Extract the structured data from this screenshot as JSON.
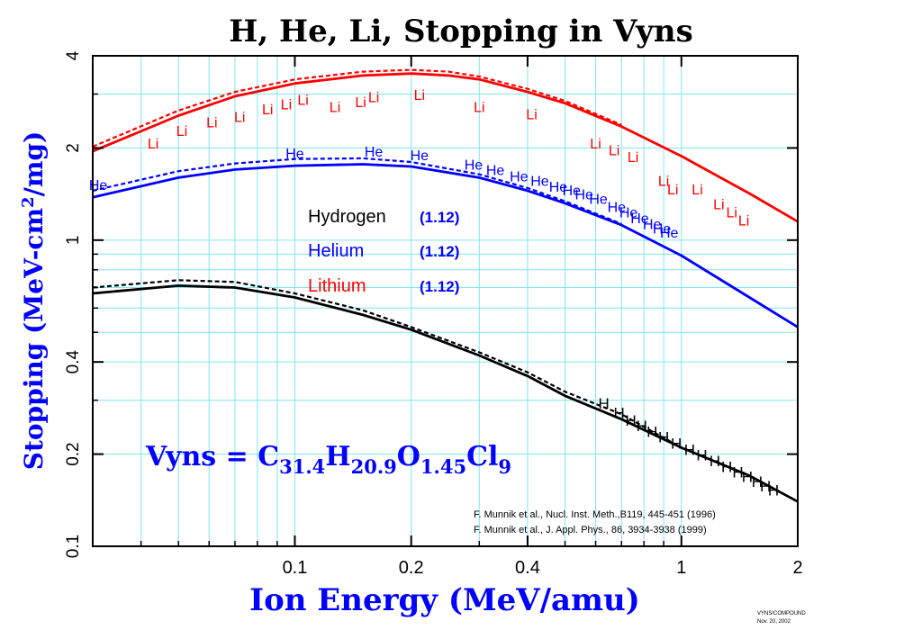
{
  "chart_data": {
    "type": "line",
    "title": "H, He, Li, Stopping in Vyns",
    "xlabel": "Ion Energy (MeV/amu)",
    "ylabel_parts": [
      "Stopping (MeV-cm",
      "2",
      "/mg)"
    ],
    "xscale": "log",
    "yscale": "log",
    "xlim": [
      0.03,
      2
    ],
    "ylim": [
      0.1,
      4
    ],
    "x_ticks": [
      {
        "value": 0.1,
        "label": "0.1"
      },
      {
        "value": 0.2,
        "label": "0.2"
      },
      {
        "value": 0.4,
        "label": "0.4"
      },
      {
        "value": 1,
        "label": "1"
      },
      {
        "value": 2,
        "label": "2"
      }
    ],
    "y_ticks": [
      {
        "value": 0.1,
        "label": "0.1"
      },
      {
        "value": 0.2,
        "label": "0.2"
      },
      {
        "value": 0.4,
        "label": "0.4"
      },
      {
        "value": 1,
        "label": "1"
      },
      {
        "value": 2,
        "label": "2"
      },
      {
        "value": 4,
        "label": "4"
      }
    ],
    "x_grid_values": [
      0.04,
      0.05,
      0.06,
      0.07,
      0.08,
      0.09,
      0.1,
      0.2,
      0.3,
      0.4,
      0.5,
      0.6,
      0.7,
      0.8,
      0.9,
      1
    ],
    "y_grid_values": [
      0.2,
      0.3,
      0.4,
      0.5,
      0.6,
      0.7,
      0.8,
      0.9,
      1,
      2,
      3
    ],
    "curves": [
      {
        "name": "Lithium (solid)",
        "color": "#ff0000",
        "dashed": false,
        "x": [
          0.03,
          0.05,
          0.07,
          0.1,
          0.15,
          0.2,
          0.25,
          0.3,
          0.4,
          0.5,
          0.7,
          1,
          1.5,
          2
        ],
        "y": [
          1.95,
          2.55,
          2.95,
          3.25,
          3.45,
          3.5,
          3.45,
          3.35,
          3.05,
          2.8,
          2.35,
          1.88,
          1.42,
          1.15
        ]
      },
      {
        "name": "Lithium (dashed)",
        "color": "#ff0000",
        "dashed": true,
        "x": [
          0.03,
          0.05,
          0.07,
          0.1,
          0.15,
          0.2,
          0.25,
          0.3,
          0.4,
          0.5,
          0.7
        ],
        "y": [
          2.02,
          2.65,
          3.05,
          3.35,
          3.55,
          3.6,
          3.55,
          3.42,
          3.12,
          2.85,
          2.38
        ]
      },
      {
        "name": "Helium (solid)",
        "color": "#0000ff",
        "dashed": false,
        "x": [
          0.03,
          0.05,
          0.07,
          0.1,
          0.15,
          0.2,
          0.3,
          0.4,
          0.5,
          0.7,
          1,
          1.5,
          2
        ],
        "y": [
          1.38,
          1.6,
          1.7,
          1.75,
          1.77,
          1.74,
          1.6,
          1.45,
          1.32,
          1.12,
          0.89,
          0.65,
          0.52
        ]
      },
      {
        "name": "Helium (dashed)",
        "color": "#0000ff",
        "dashed": true,
        "x": [
          0.03,
          0.05,
          0.07,
          0.1,
          0.15,
          0.2,
          0.3,
          0.4,
          0.5,
          0.7
        ],
        "y": [
          1.45,
          1.68,
          1.78,
          1.84,
          1.85,
          1.8,
          1.64,
          1.48,
          1.34,
          1.13
        ]
      },
      {
        "name": "Hydrogen (solid)",
        "color": "#000000",
        "dashed": false,
        "x": [
          0.03,
          0.05,
          0.07,
          0.1,
          0.15,
          0.2,
          0.3,
          0.4,
          0.5,
          0.7,
          1,
          1.5,
          2
        ],
        "y": [
          0.67,
          0.71,
          0.7,
          0.65,
          0.57,
          0.51,
          0.42,
          0.36,
          0.31,
          0.26,
          0.21,
          0.17,
          0.14
        ]
      },
      {
        "name": "Hydrogen (dashed)",
        "color": "#000000",
        "dashed": true,
        "x": [
          0.03,
          0.05,
          0.07,
          0.1,
          0.15,
          0.2,
          0.3,
          0.4,
          0.5,
          0.7,
          1
        ],
        "y": [
          0.7,
          0.74,
          0.73,
          0.67,
          0.59,
          0.52,
          0.43,
          0.37,
          0.32,
          0.27,
          0.21
        ]
      }
    ],
    "markers": [
      {
        "symbol": "Li",
        "color": "#ff0000",
        "points": [
          [
            0.043,
            2.05
          ],
          [
            0.051,
            2.25
          ],
          [
            0.061,
            2.4
          ],
          [
            0.072,
            2.5
          ],
          [
            0.085,
            2.65
          ],
          [
            0.095,
            2.75
          ],
          [
            0.105,
            2.85
          ],
          [
            0.127,
            2.7
          ],
          [
            0.148,
            2.8
          ],
          [
            0.16,
            2.9
          ],
          [
            0.21,
            2.95
          ],
          [
            0.3,
            2.7
          ],
          [
            0.41,
            2.55
          ],
          [
            0.6,
            2.05
          ],
          [
            0.67,
            1.95
          ],
          [
            0.75,
            1.85
          ],
          [
            0.9,
            1.55
          ],
          [
            0.95,
            1.45
          ],
          [
            1.1,
            1.45
          ],
          [
            1.25,
            1.3
          ],
          [
            1.35,
            1.22
          ],
          [
            1.45,
            1.15
          ]
        ]
      },
      {
        "symbol": "He",
        "color": "#0000ff",
        "points": [
          [
            0.031,
            1.5
          ],
          [
            0.1,
            1.9
          ],
          [
            0.16,
            1.93
          ],
          [
            0.21,
            1.88
          ],
          [
            0.29,
            1.75
          ],
          [
            0.33,
            1.68
          ],
          [
            0.38,
            1.6
          ],
          [
            0.43,
            1.55
          ],
          [
            0.48,
            1.48
          ],
          [
            0.52,
            1.44
          ],
          [
            0.56,
            1.4
          ],
          [
            0.61,
            1.35
          ],
          [
            0.68,
            1.27
          ],
          [
            0.73,
            1.22
          ],
          [
            0.78,
            1.17
          ],
          [
            0.84,
            1.12
          ],
          [
            0.89,
            1.08
          ],
          [
            0.93,
            1.05
          ]
        ]
      },
      {
        "symbol": "H",
        "color": "#000000",
        "points": [
          [
            0.63,
            0.29
          ],
          [
            0.69,
            0.27
          ],
          [
            0.74,
            0.255
          ],
          [
            0.79,
            0.245
          ],
          [
            0.84,
            0.235
          ],
          [
            0.9,
            0.225
          ],
          [
            0.97,
            0.215
          ],
          [
            1.05,
            0.205
          ],
          [
            1.13,
            0.197
          ],
          [
            1.22,
            0.188
          ],
          [
            1.31,
            0.18
          ],
          [
            1.4,
            0.173
          ],
          [
            1.48,
            0.167
          ],
          [
            1.57,
            0.161
          ],
          [
            1.65,
            0.156
          ],
          [
            1.73,
            0.151
          ]
        ]
      }
    ],
    "legend": [
      {
        "label": "Hydrogen",
        "value": "(1.12)",
        "color": "#000000"
      },
      {
        "label": "Helium",
        "value": "(1.12)",
        "color": "#0000ff"
      },
      {
        "label": "Lithium",
        "value": "(1.12)",
        "color": "#ff0000"
      }
    ],
    "formula": {
      "prefix": "Vyns = ",
      "parts": [
        {
          "el": "C",
          "sub": "31.4"
        },
        {
          "el": "H",
          "sub": "20.9"
        },
        {
          "el": "O",
          "sub": "1.45"
        },
        {
          "el": "Cl",
          "sub": "9"
        }
      ]
    },
    "references": [
      "F. Munnik et al., Nucl. Inst. Meth.,B119, 445-451 (1996)",
      "F. Munnik et al., J. Appl. Phys., 86, 3934-3938 (1999)"
    ],
    "footer": [
      "VYNS/COMPOUND",
      "Nov. 20, 2002"
    ],
    "colors": {
      "grid": "#7fe6f0",
      "axis": "#000000",
      "ylabel": "#0000ff",
      "xlabel": "#0000ff",
      "formula": "#0000ff"
    }
  }
}
